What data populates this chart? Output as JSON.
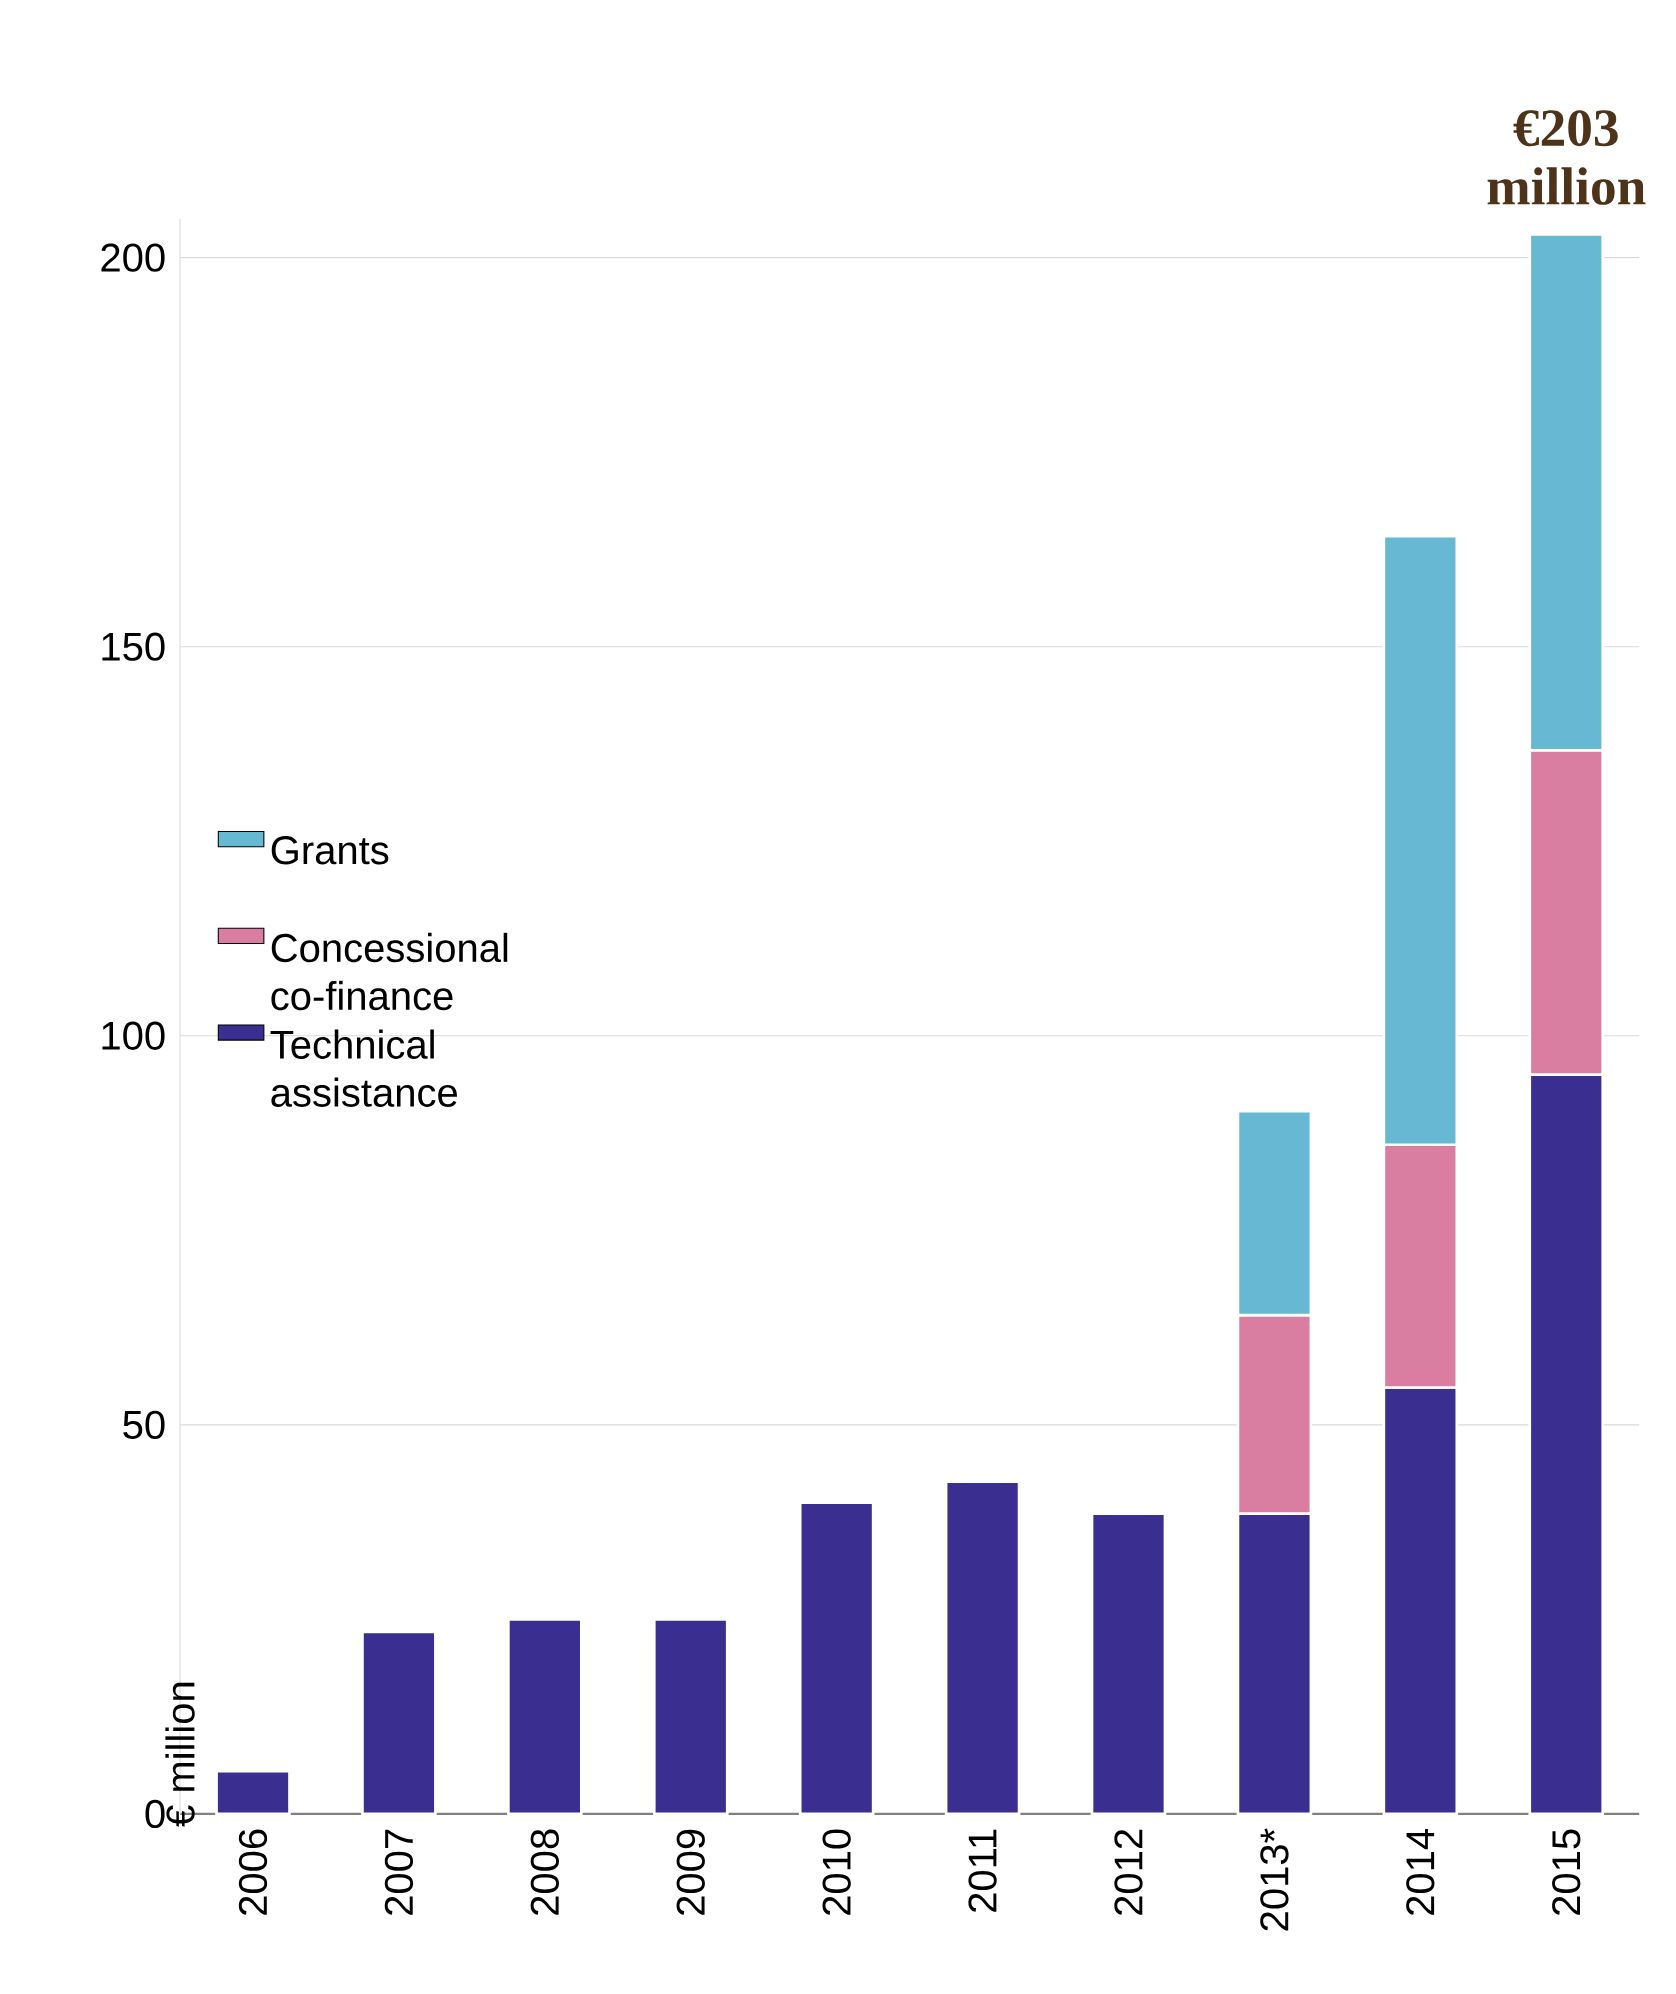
{
  "chart_data": {
    "type": "bar",
    "stacked": true,
    "ylabel": "€ million",
    "categories": [
      "2006",
      "2007",
      "2008",
      "2009",
      "2010",
      "2011",
      "2012",
      "2013*",
      "2014",
      "2015"
    ],
    "series": [
      {
        "name": "Technical assistance",
        "color": "#3a2e91",
        "values": [
          5.5,
          23.4,
          25,
          25,
          40,
          42.7,
          38.6,
          38.6,
          54.8,
          95
        ]
      },
      {
        "name": "Concessional co-finance",
        "color": "#d97ea0",
        "values": [
          null,
          null,
          null,
          null,
          null,
          null,
          null,
          25.5,
          31.2,
          41.7
        ]
      },
      {
        "name": "Grants",
        "color": "#66b8d3",
        "values": [
          null,
          null,
          null,
          null,
          null,
          null,
          null,
          26.2,
          78.2,
          66.3
        ]
      }
    ],
    "annotations": [
      "€203 million"
    ],
    "ylim": [
      0,
      205
    ],
    "yticks": [
      0,
      50,
      100,
      150,
      200
    ],
    "grid": "y",
    "legend": "left"
  }
}
